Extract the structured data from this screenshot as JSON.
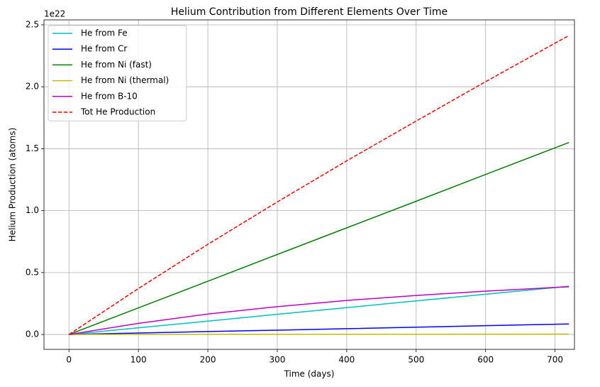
{
  "chart_data": {
    "type": "line",
    "title": "Helium Contribution from Different Elements Over Time",
    "x_label": "Time (days)",
    "y_label": "Helium Production (atoms)",
    "y_offset_label": "1e22",
    "x": [
      0,
      100,
      200,
      300,
      400,
      500,
      600,
      700,
      720
    ],
    "series": [
      {
        "name": "He from Fe",
        "color": "#00bfbf",
        "dash": false,
        "values": [
          0,
          0.054,
          0.108,
          0.163,
          0.217,
          0.271,
          0.325,
          0.379,
          0.39
        ]
      },
      {
        "name": "He from Cr",
        "color": "#0000ff",
        "dash": false,
        "values": [
          0,
          0.012,
          0.024,
          0.035,
          0.047,
          0.059,
          0.071,
          0.083,
          0.085
        ]
      },
      {
        "name": "He from Ni (fast)",
        "color": "#008000",
        "dash": false,
        "values": [
          0,
          0.215,
          0.43,
          0.646,
          0.861,
          1.076,
          1.292,
          1.507,
          1.55
        ]
      },
      {
        "name": "He from Ni (thermal)",
        "color": "#bfbf00",
        "dash": false,
        "values": [
          0,
          0.0004,
          0.0008,
          0.0013,
          0.0017,
          0.0021,
          0.0025,
          0.0029,
          0.003
        ]
      },
      {
        "name": "He from B-10",
        "color": "#bf00bf",
        "dash": false,
        "values": [
          0,
          0.09,
          0.165,
          0.225,
          0.275,
          0.315,
          0.35,
          0.38,
          0.385
        ]
      },
      {
        "name": "Tot He Production",
        "color": "#ff0000",
        "dash": true,
        "values": [
          0,
          0.371,
          0.728,
          1.07,
          1.402,
          1.723,
          2.041,
          2.352,
          2.413
        ]
      }
    ],
    "xlim": [
      -36,
      728
    ],
    "ylim": [
      -0.12,
      2.54
    ],
    "xticks": [
      0,
      100,
      200,
      300,
      400,
      500,
      600,
      700
    ],
    "yticks": [
      {
        "value": 0,
        "label": "0.0"
      },
      0.5,
      {
        "value": 1,
        "label": "1.0"
      },
      1.5,
      {
        "value": 2,
        "label": "2.0"
      },
      2.5
    ],
    "grid": true,
    "legend": "upper-left"
  }
}
